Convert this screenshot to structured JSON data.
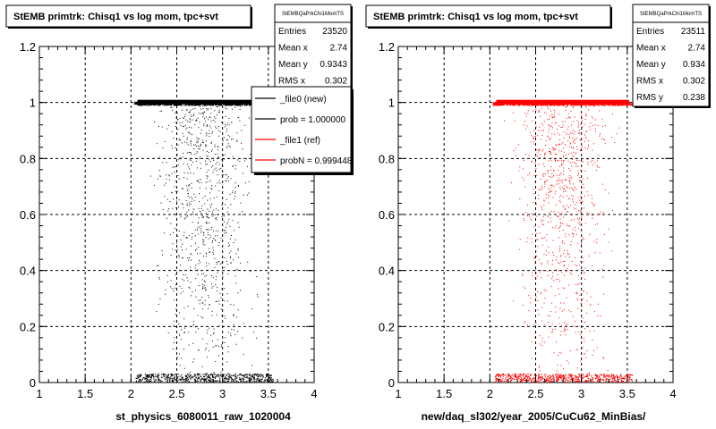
{
  "chart_data": [
    {
      "type": "scatter",
      "title": "StEMB primtrk: Chisq1 vs log mom, tpc+svt",
      "xlabel": "st_physics_6080011_raw_1020004",
      "ylabel": "",
      "xlim": [
        1,
        4
      ],
      "ylim": [
        0,
        1.2
      ],
      "xticks": [
        "1",
        "1.5",
        "2",
        "2.5",
        "3",
        "3.5",
        "4"
      ],
      "yticks": [
        "0",
        "0.2",
        "0.4",
        "0.6",
        "0.8",
        "1",
        "1.2"
      ],
      "grid": true,
      "marker_color": "#000000",
      "x_range_of_points": [
        2.03,
        3.65
      ],
      "dense_rows": [
        0.0,
        1.0
      ],
      "stats": {
        "name": "StEMBQaPrkChi1MomTS",
        "rows": [
          {
            "label": "Entries",
            "value": "23520"
          },
          {
            "label": "Mean x",
            "value": "2.74"
          },
          {
            "label": "Mean y",
            "value": "0.9343"
          },
          {
            "label": "RMS x",
            "value": "0.302"
          }
        ]
      },
      "legend": {
        "placement": "top-right",
        "entries": [
          {
            "label": "_file0 (new)",
            "color": "#000000"
          },
          {
            "label": "prob = 1.000000",
            "color": "#000000"
          },
          {
            "label": "_file1 (ref)",
            "color": "#ff0000"
          },
          {
            "label": "probN = 0.999448",
            "color": "#ff0000"
          }
        ]
      }
    },
    {
      "type": "scatter",
      "title": "StEMB primtrk: Chisq1 vs log mom, tpc+svt",
      "xlabel": "new/daq_sl302/year_2005/CuCu62_MinBias/",
      "ylabel": "",
      "xlim": [
        1,
        4
      ],
      "ylim": [
        0,
        1.2
      ],
      "xticks": [
        "1",
        "1.5",
        "2",
        "2.5",
        "3",
        "3.5",
        "4"
      ],
      "yticks": [
        "0",
        "0.2",
        "0.4",
        "0.6",
        "0.8",
        "1",
        "1.2"
      ],
      "grid": true,
      "marker_color": "#ff0000",
      "x_range_of_points": [
        2.03,
        3.65
      ],
      "dense_rows": [
        0.0,
        1.0
      ],
      "stats": {
        "name": "StEMBQaPrkChi1MomTS",
        "rows": [
          {
            "label": "Entries",
            "value": "23511"
          },
          {
            "label": "Mean x",
            "value": "2.74"
          },
          {
            "label": "Mean y",
            "value": "0.934"
          },
          {
            "label": "RMS x",
            "value": "0.302"
          },
          {
            "label": "RMS y",
            "value": "0.238"
          }
        ]
      }
    }
  ]
}
